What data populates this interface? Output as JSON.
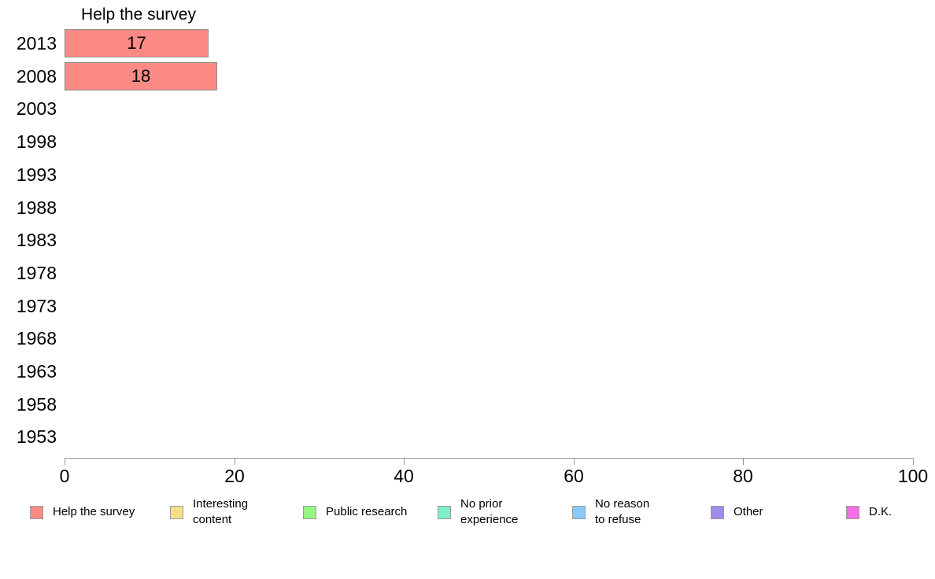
{
  "chart": {
    "title": "Help the survey"
  },
  "legend": {
    "items": [
      {
        "label": "Help the survey",
        "lines": [
          "Help the survey"
        ],
        "color": "#FC8A84"
      },
      {
        "label": "Interesting content",
        "lines": [
          "Interesting",
          "content"
        ],
        "color": "#F6E087"
      },
      {
        "label": "Public research",
        "lines": [
          "Public research"
        ],
        "color": "#99F583"
      },
      {
        "label": "No prior experience",
        "lines": [
          "No prior",
          "experience"
        ],
        "color": "#7DEFC6"
      },
      {
        "label": "No reason to refuse",
        "lines": [
          "No reason",
          "to refuse"
        ],
        "color": "#87CBFA"
      },
      {
        "label": "Other",
        "lines": [
          "Other"
        ],
        "color": "#A08BE8"
      },
      {
        "label": "D.K.",
        "lines": [
          "D.K."
        ],
        "color": "#F06FE4"
      }
    ]
  },
  "chart_data": {
    "type": "bar",
    "orientation": "horizontal",
    "title": "Help the survey",
    "categories": [
      "2013",
      "2008",
      "2003",
      "1998",
      "1993",
      "1988",
      "1983",
      "1978",
      "1973",
      "1968",
      "1963",
      "1958",
      "1953"
    ],
    "series": [
      {
        "name": "Help the survey",
        "color": "#FC8A84",
        "values": [
          17,
          18,
          0,
          0,
          0,
          0,
          0,
          0,
          0,
          0,
          0,
          0,
          0
        ]
      },
      {
        "name": "Interesting content",
        "color": "#F6E087",
        "values": []
      },
      {
        "name": "Public research",
        "color": "#99F583",
        "values": []
      },
      {
        "name": "No prior experience",
        "color": "#7DEFC6",
        "values": []
      },
      {
        "name": "No reason to refuse",
        "color": "#87CBFA",
        "values": []
      },
      {
        "name": "Other",
        "color": "#A08BE8",
        "values": []
      },
      {
        "name": "D.K.",
        "color": "#F06FE4",
        "values": []
      }
    ],
    "xlim": [
      0,
      100
    ],
    "x_ticks": [
      0,
      20,
      40,
      60,
      80,
      100
    ],
    "grid": false,
    "value_labels": true,
    "legend_position": "bottom",
    "bar_border_color": "#8e8e8e",
    "axis_color": "#999999"
  }
}
